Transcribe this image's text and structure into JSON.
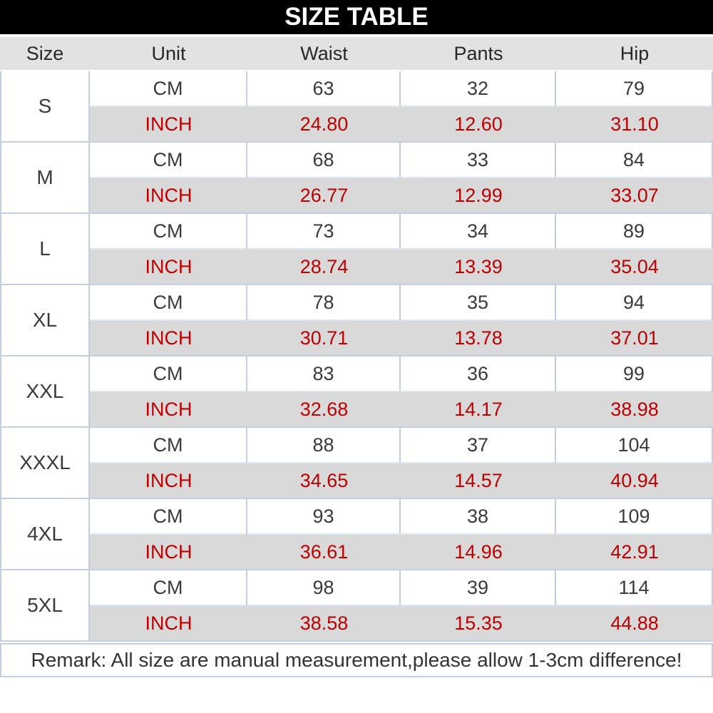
{
  "title": "SIZE TABLE",
  "chart_data": {
    "type": "table",
    "title": "SIZE TABLE",
    "columns": [
      "Size",
      "Unit",
      "Waist",
      "Pants",
      "Hip"
    ],
    "unit_labels": {
      "cm": "CM",
      "inch": "INCH"
    },
    "sizes": [
      {
        "size": "S",
        "cm": [
          "63",
          "32",
          "79"
        ],
        "inch": [
          "24.80",
          "12.60",
          "31.10"
        ]
      },
      {
        "size": "M",
        "cm": [
          "68",
          "33",
          "84"
        ],
        "inch": [
          "26.77",
          "12.99",
          "33.07"
        ]
      },
      {
        "size": "L",
        "cm": [
          "73",
          "34",
          "89"
        ],
        "inch": [
          "28.74",
          "13.39",
          "35.04"
        ]
      },
      {
        "size": "XL",
        "cm": [
          "78",
          "35",
          "94"
        ],
        "inch": [
          "30.71",
          "13.78",
          "37.01"
        ]
      },
      {
        "size": "XXL",
        "cm": [
          "83",
          "36",
          "99"
        ],
        "inch": [
          "32.68",
          "14.17",
          "38.98"
        ]
      },
      {
        "size": "XXXL",
        "cm": [
          "88",
          "37",
          "104"
        ],
        "inch": [
          "34.65",
          "14.57",
          "40.94"
        ]
      },
      {
        "size": "4XL",
        "cm": [
          "93",
          "38",
          "109"
        ],
        "inch": [
          "36.61",
          "14.96",
          "42.91"
        ]
      },
      {
        "size": "5XL",
        "cm": [
          "98",
          "39",
          "114"
        ],
        "inch": [
          "38.58",
          "15.35",
          "44.88"
        ]
      }
    ],
    "remark": "Remark: All size are manual measurement,please allow 1-3cm difference!"
  },
  "colors": {
    "title_bg": "#000000",
    "title_text": "#ffffff",
    "header_bg": "#e2e2e2",
    "inch_row_bg": "#d9d9d9",
    "inch_text": "#c00000",
    "cm_text": "#3a3a3a",
    "border": "#c3cfe0"
  }
}
